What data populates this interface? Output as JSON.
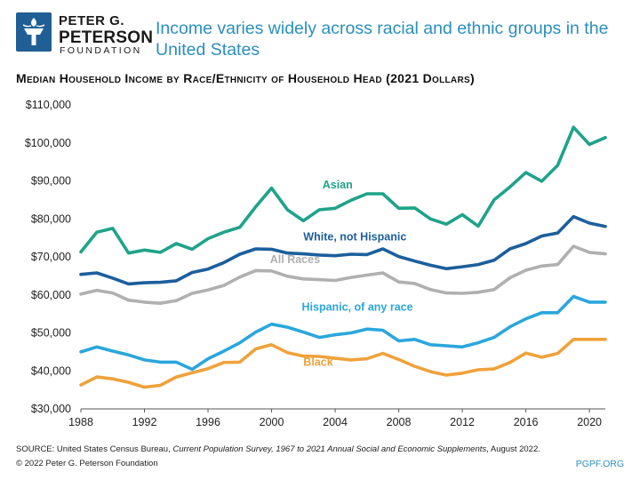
{
  "brand": {
    "line1": "PETER G.",
    "line2": "PETERSON",
    "line3": "FOUNDATION",
    "logo_color": "#1f5f95"
  },
  "headline": "Income varies widely across racial and ethnic groups in the United States",
  "footer": {
    "source_prefix": "SOURCE: United States Census Bureau, ",
    "source_italic": "Current Population Survey, 1967 to 2021 Annual Social and Economic Supplements",
    "source_suffix": ", August 2022.",
    "copyright": "© 2022 Peter G. Peterson Foundation",
    "site": "PGPF.ORG"
  },
  "chart_data": {
    "type": "line",
    "title": "Median Household Income by Race/Ethnicity of Household Head (2021 Dollars)",
    "xlabel": "",
    "ylabel": "",
    "xlim": [
      1988,
      2021
    ],
    "ylim": [
      30000,
      110000
    ],
    "grid": false,
    "x_ticks": [
      1988,
      1992,
      1996,
      2000,
      2004,
      2008,
      2012,
      2016,
      2020
    ],
    "y_ticks": [
      {
        "value": 30000,
        "label": "$30,000"
      },
      {
        "value": 40000,
        "label": "$40,000"
      },
      {
        "value": 50000,
        "label": "$50,000"
      },
      {
        "value": 60000,
        "label": "$60,000"
      },
      {
        "value": 70000,
        "label": "$70,000"
      },
      {
        "value": 80000,
        "label": "$80,000"
      },
      {
        "value": 90000,
        "label": "$90,000"
      },
      {
        "value": 100000,
        "label": "$100,000"
      },
      {
        "value": 110000,
        "label": "$110,000"
      }
    ],
    "x": [
      1988,
      1989,
      1990,
      1991,
      1992,
      1993,
      1994,
      1995,
      1996,
      1997,
      1998,
      1999,
      2000,
      2001,
      2002,
      2003,
      2004,
      2005,
      2006,
      2007,
      2008,
      2009,
      2010,
      2011,
      2012,
      2013,
      2014,
      2015,
      2016,
      2017,
      2018,
      2019,
      2020,
      2021
    ],
    "series": [
      {
        "name": "Asian",
        "color": "#1fa38a",
        "label_at": {
          "x": 2003.2,
          "y": 88000
        },
        "values": [
          71300,
          76500,
          77500,
          71000,
          71800,
          71200,
          73500,
          72000,
          74800,
          76500,
          77800,
          83200,
          88100,
          82400,
          79500,
          82400,
          82800,
          84900,
          86600,
          86600,
          82800,
          82900,
          80000,
          78600,
          81100,
          78100,
          85000,
          88400,
          92200,
          89900,
          94100,
          104100,
          99600,
          101400
        ]
      },
      {
        "name": "White, not Hispanic",
        "color": "#1c5f9c",
        "label_at": {
          "x": 2002.0,
          "y": 74300
        },
        "values": [
          65400,
          65800,
          64400,
          62900,
          63200,
          63300,
          63700,
          65900,
          66800,
          68500,
          70700,
          72100,
          72000,
          71000,
          70800,
          70500,
          70300,
          70700,
          70600,
          72100,
          70100,
          68900,
          67800,
          66900,
          67400,
          68000,
          69100,
          72100,
          73500,
          75500,
          76300,
          80600,
          78900,
          78000
        ]
      },
      {
        "name": "All Races",
        "color": "#b0b0b0",
        "label_at": {
          "x": 1999.9,
          "y": 68400
        },
        "values": [
          60200,
          61200,
          60500,
          58600,
          58100,
          57800,
          58500,
          60400,
          61300,
          62500,
          64700,
          66400,
          66300,
          64900,
          64200,
          64000,
          63800,
          64600,
          65200,
          65800,
          63400,
          63000,
          61400,
          60500,
          60400,
          60700,
          61400,
          64500,
          66500,
          67600,
          68000,
          72800,
          71200,
          70800
        ]
      },
      {
        "name": "Hispanic, of any race",
        "color": "#2aa7dc",
        "label_at": {
          "x": 2001.9,
          "y": 55800
        },
        "values": [
          45000,
          46300,
          45200,
          44200,
          42900,
          42300,
          42300,
          40400,
          43200,
          45200,
          47400,
          50200,
          52300,
          51500,
          50200,
          48800,
          49500,
          50000,
          51000,
          50700,
          47900,
          48300,
          46900,
          46600,
          46300,
          47400,
          48800,
          51600,
          53700,
          55300,
          55300,
          59600,
          58100,
          58100
        ]
      },
      {
        "name": "Black",
        "color": "#efa23b",
        "label_at": {
          "x": 2002.0,
          "y": 41400
        },
        "values": [
          36300,
          38400,
          37900,
          37000,
          35700,
          36200,
          38400,
          39500,
          40600,
          42200,
          42300,
          45800,
          46900,
          44800,
          43900,
          43800,
          43300,
          42900,
          43200,
          44600,
          43000,
          41200,
          39800,
          38900,
          39400,
          40300,
          40500,
          42200,
          44700,
          43600,
          44600,
          48300,
          48300,
          48300
        ]
      }
    ]
  }
}
